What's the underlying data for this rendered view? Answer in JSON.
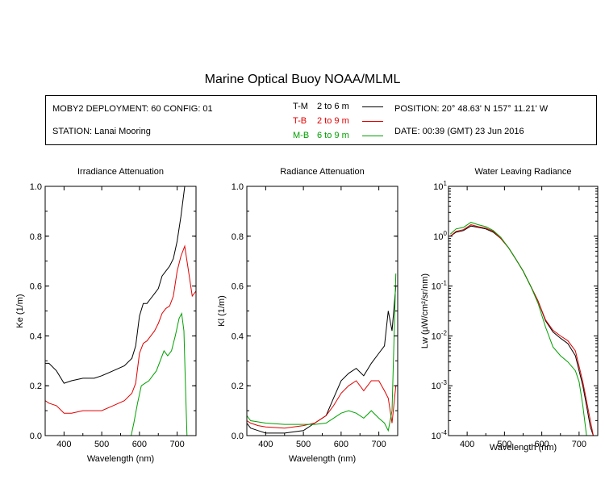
{
  "title": "Marine Optical Buoy NOAA/MLML",
  "info": {
    "deployment": "MOBY2 DEPLOYMENT: 60 CONFIG: 01",
    "station": "STATION: Lanai Mooring",
    "position": "POSITION: 20° 48.63' N   157° 11.21' W",
    "date": "DATE: 00:39 (GMT) 23 Jun 2016"
  },
  "legend": [
    {
      "key": "T-M",
      "range": "2 to 6  m",
      "color": "#000000"
    },
    {
      "key": "T-B",
      "range": "2 to 9  m",
      "color": "#e00000"
    },
    {
      "key": "M-B",
      "range": "6 to 9  m",
      "color": "#00a000"
    }
  ],
  "chart_data": [
    {
      "type": "line",
      "title": "Irradiance Attenuation",
      "xlabel": "Wavelength (nm)",
      "ylabel": "Ke  (1/m)",
      "xlim": [
        350,
        750
      ],
      "ylim": [
        0,
        1.0
      ],
      "xticks": [
        400,
        500,
        600,
        700
      ],
      "yticks": [
        0.0,
        0.2,
        0.4,
        0.6,
        0.8,
        1.0
      ],
      "ytick_labels": [
        "0.0",
        "0.2",
        "0.4",
        "0.6",
        "0.8",
        "1.0"
      ],
      "series": [
        {
          "name": "T-M",
          "color": "#000000",
          "x": [
            350,
            360,
            380,
            400,
            420,
            450,
            480,
            500,
            530,
            560,
            580,
            590,
            600,
            610,
            620,
            630,
            640,
            650,
            660,
            670,
            680,
            690,
            700,
            710,
            720
          ],
          "y": [
            0.29,
            0.29,
            0.26,
            0.21,
            0.22,
            0.23,
            0.23,
            0.24,
            0.26,
            0.28,
            0.31,
            0.36,
            0.48,
            0.53,
            0.53,
            0.55,
            0.57,
            0.59,
            0.64,
            0.66,
            0.68,
            0.71,
            0.78,
            0.88,
            1.0
          ]
        },
        {
          "name": "T-B",
          "color": "#e00000",
          "x": [
            350,
            360,
            380,
            400,
            420,
            450,
            480,
            500,
            530,
            560,
            580,
            590,
            600,
            610,
            620,
            630,
            640,
            650,
            660,
            670,
            680,
            690,
            700,
            710,
            720,
            730,
            740,
            750
          ],
          "y": [
            0.14,
            0.13,
            0.12,
            0.09,
            0.09,
            0.1,
            0.1,
            0.1,
            0.12,
            0.14,
            0.17,
            0.21,
            0.33,
            0.37,
            0.38,
            0.4,
            0.42,
            0.45,
            0.49,
            0.51,
            0.52,
            0.56,
            0.66,
            0.72,
            0.76,
            0.66,
            0.56,
            0.58
          ]
        },
        {
          "name": "M-B",
          "color": "#00a000",
          "x": [
            578,
            585,
            595,
            605,
            615,
            625,
            635,
            645,
            655,
            665,
            675,
            685,
            695,
            705,
            712,
            718,
            722,
            726
          ],
          "y": [
            0.0,
            0.05,
            0.13,
            0.2,
            0.21,
            0.22,
            0.24,
            0.26,
            0.3,
            0.34,
            0.32,
            0.34,
            0.4,
            0.47,
            0.49,
            0.42,
            0.2,
            0.0
          ]
        }
      ]
    },
    {
      "type": "line",
      "title": "Radiance Attenuation",
      "xlabel": "Wavelength (nm)",
      "ylabel": "Kl  (1/m)",
      "xlim": [
        350,
        750
      ],
      "ylim": [
        0,
        1.0
      ],
      "xticks": [
        400,
        500,
        600,
        700
      ],
      "yticks": [
        0.0,
        0.2,
        0.4,
        0.6,
        0.8,
        1.0
      ],
      "ytick_labels": [
        "0.0",
        "0.2",
        "0.4",
        "0.6",
        "0.8",
        "1.0"
      ],
      "series": [
        {
          "name": "T-M",
          "color": "#000000",
          "x": [
            350,
            360,
            380,
            400,
            450,
            500,
            530,
            560,
            580,
            600,
            620,
            640,
            660,
            680,
            700,
            715,
            725,
            735,
            745
          ],
          "y": [
            0.05,
            0.03,
            0.02,
            0.01,
            0.01,
            0.02,
            0.05,
            0.08,
            0.15,
            0.22,
            0.25,
            0.27,
            0.24,
            0.29,
            0.33,
            0.36,
            0.5,
            0.42,
            0.6
          ]
        },
        {
          "name": "T-B",
          "color": "#e00000",
          "x": [
            350,
            360,
            380,
            400,
            450,
            500,
            530,
            560,
            580,
            600,
            620,
            640,
            660,
            680,
            700,
            715,
            725,
            735,
            745
          ],
          "y": [
            0.06,
            0.05,
            0.04,
            0.035,
            0.03,
            0.04,
            0.05,
            0.08,
            0.12,
            0.17,
            0.2,
            0.22,
            0.18,
            0.22,
            0.22,
            0.18,
            0.15,
            0.05,
            0.2
          ]
        },
        {
          "name": "M-B",
          "color": "#00a000",
          "x": [
            350,
            360,
            380,
            400,
            450,
            500,
            530,
            560,
            580,
            600,
            620,
            640,
            660,
            680,
            700,
            715,
            725,
            735,
            745
          ],
          "y": [
            0.08,
            0.06,
            0.055,
            0.05,
            0.045,
            0.045,
            0.045,
            0.05,
            0.07,
            0.09,
            0.1,
            0.09,
            0.07,
            0.1,
            0.07,
            0.05,
            0.02,
            0.1,
            0.65
          ]
        }
      ]
    },
    {
      "type": "line",
      "title": "Water Leaving Radiance",
      "xlabel": "Wavelength (nm)",
      "ylabel": "Lw  (µW/cm²/sr/nm)",
      "xlim": [
        350,
        750
      ],
      "ylim": [
        0.0001,
        10
      ],
      "log_y": true,
      "xticks": [
        400,
        500,
        600,
        700
      ],
      "yticks": [
        0.0001,
        0.001,
        0.01,
        0.1,
        1,
        10
      ],
      "ytick_labels": [
        [
          "10",
          "-4"
        ],
        [
          "10",
          "-3"
        ],
        [
          "10",
          "-2"
        ],
        [
          "10",
          "-1"
        ],
        [
          "10",
          "0"
        ],
        [
          "10",
          "1"
        ]
      ],
      "series": [
        {
          "name": "T-M",
          "color": "#000000",
          "x": [
            355,
            370,
            390,
            410,
            430,
            450,
            470,
            490,
            510,
            530,
            550,
            570,
            590,
            610,
            630,
            650,
            670,
            690,
            710,
            720,
            730,
            738
          ],
          "y": [
            1.0,
            1.2,
            1.3,
            1.6,
            1.5,
            1.4,
            1.2,
            0.9,
            0.6,
            0.35,
            0.2,
            0.1,
            0.05,
            0.02,
            0.012,
            0.009,
            0.007,
            0.004,
            0.001,
            0.0004,
            0.00015,
            0.0001
          ]
        },
        {
          "name": "T-B",
          "color": "#e00000",
          "x": [
            355,
            370,
            390,
            410,
            430,
            450,
            470,
            490,
            510,
            530,
            550,
            570,
            590,
            610,
            630,
            650,
            670,
            690,
            710,
            720,
            730,
            738
          ],
          "y": [
            1.0,
            1.25,
            1.35,
            1.7,
            1.55,
            1.45,
            1.25,
            0.9,
            0.6,
            0.35,
            0.2,
            0.1,
            0.05,
            0.021,
            0.013,
            0.01,
            0.008,
            0.005,
            0.0012,
            0.0005,
            0.0002,
            0.0001
          ]
        },
        {
          "name": "M-B",
          "color": "#00a000",
          "x": [
            355,
            370,
            390,
            410,
            430,
            450,
            470,
            490,
            510,
            530,
            550,
            570,
            590,
            610,
            630,
            650,
            670,
            690,
            700,
            710,
            720
          ],
          "y": [
            1.1,
            1.4,
            1.5,
            1.9,
            1.7,
            1.55,
            1.3,
            0.95,
            0.6,
            0.35,
            0.2,
            0.1,
            0.045,
            0.015,
            0.006,
            0.004,
            0.003,
            0.002,
            0.0012,
            0.0004,
            0.0001
          ]
        }
      ]
    }
  ]
}
